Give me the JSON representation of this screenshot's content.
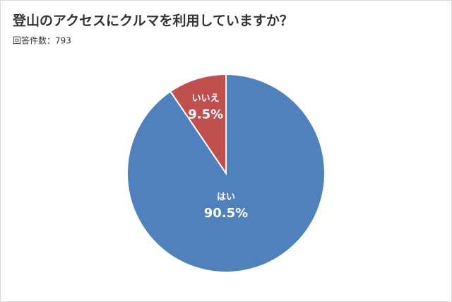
{
  "chart_data": {
    "type": "pie",
    "title": "登山のアクセスにクルマを利用していますか？",
    "subtitle": "回答件数：793",
    "categories": [
      "はい",
      "いいえ"
    ],
    "values": [
      90.5,
      9.5
    ],
    "value_labels": [
      "90.5%",
      "9.5%"
    ],
    "colors": [
      "#4f81bd",
      "#c0504d"
    ]
  }
}
